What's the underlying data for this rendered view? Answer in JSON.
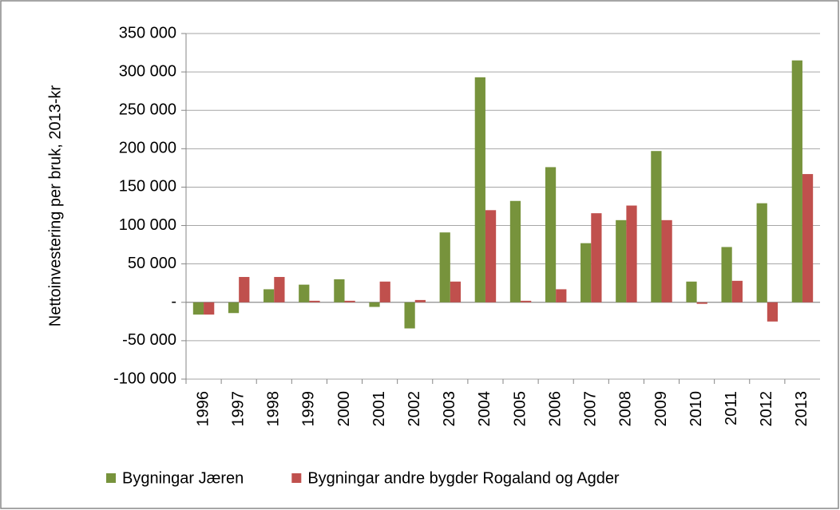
{
  "chart_data": {
    "type": "bar",
    "y_label": "Nettoinvestering per bruk, 2013-kr",
    "categories": [
      "1996",
      "1997",
      "1998",
      "1999",
      "2000",
      "2001",
      "2002",
      "2003",
      "2004",
      "2005",
      "2006",
      "2007",
      "2008",
      "2009",
      "2010",
      "2011",
      "2012",
      "2013"
    ],
    "series": [
      {
        "name": "Bygningar Jæren",
        "color": "#77933c",
        "values": [
          -16000,
          -14000,
          17000,
          23000,
          30000,
          -6000,
          -34000,
          91000,
          293000,
          132000,
          176000,
          77000,
          107000,
          197000,
          27000,
          72000,
          129000,
          315000
        ]
      },
      {
        "name": "Bygningar andre bygder Rogaland og Agder",
        "color": "#c0504d",
        "values": [
          -16000,
          33000,
          33000,
          2000,
          2000,
          27000,
          3000,
          27000,
          120000,
          2000,
          17000,
          116000,
          126000,
          107000,
          -2000,
          28000,
          -25000,
          167000
        ]
      }
    ],
    "ylim": [
      -100000,
      350000
    ],
    "yticks": [
      {
        "value": -100000,
        "label": "-100 000"
      },
      {
        "value": -50000,
        "label": "-50 000"
      },
      {
        "value": 0,
        "label": "-"
      },
      {
        "value": 50000,
        "label": "50 000"
      },
      {
        "value": 100000,
        "label": "100 000"
      },
      {
        "value": 150000,
        "label": "150 000"
      },
      {
        "value": 200000,
        "label": "200 000"
      },
      {
        "value": 250000,
        "label": "250 000"
      },
      {
        "value": 300000,
        "label": "300 000"
      },
      {
        "value": 350000,
        "label": "350 000"
      }
    ],
    "grid": true,
    "legend": "bottom"
  }
}
